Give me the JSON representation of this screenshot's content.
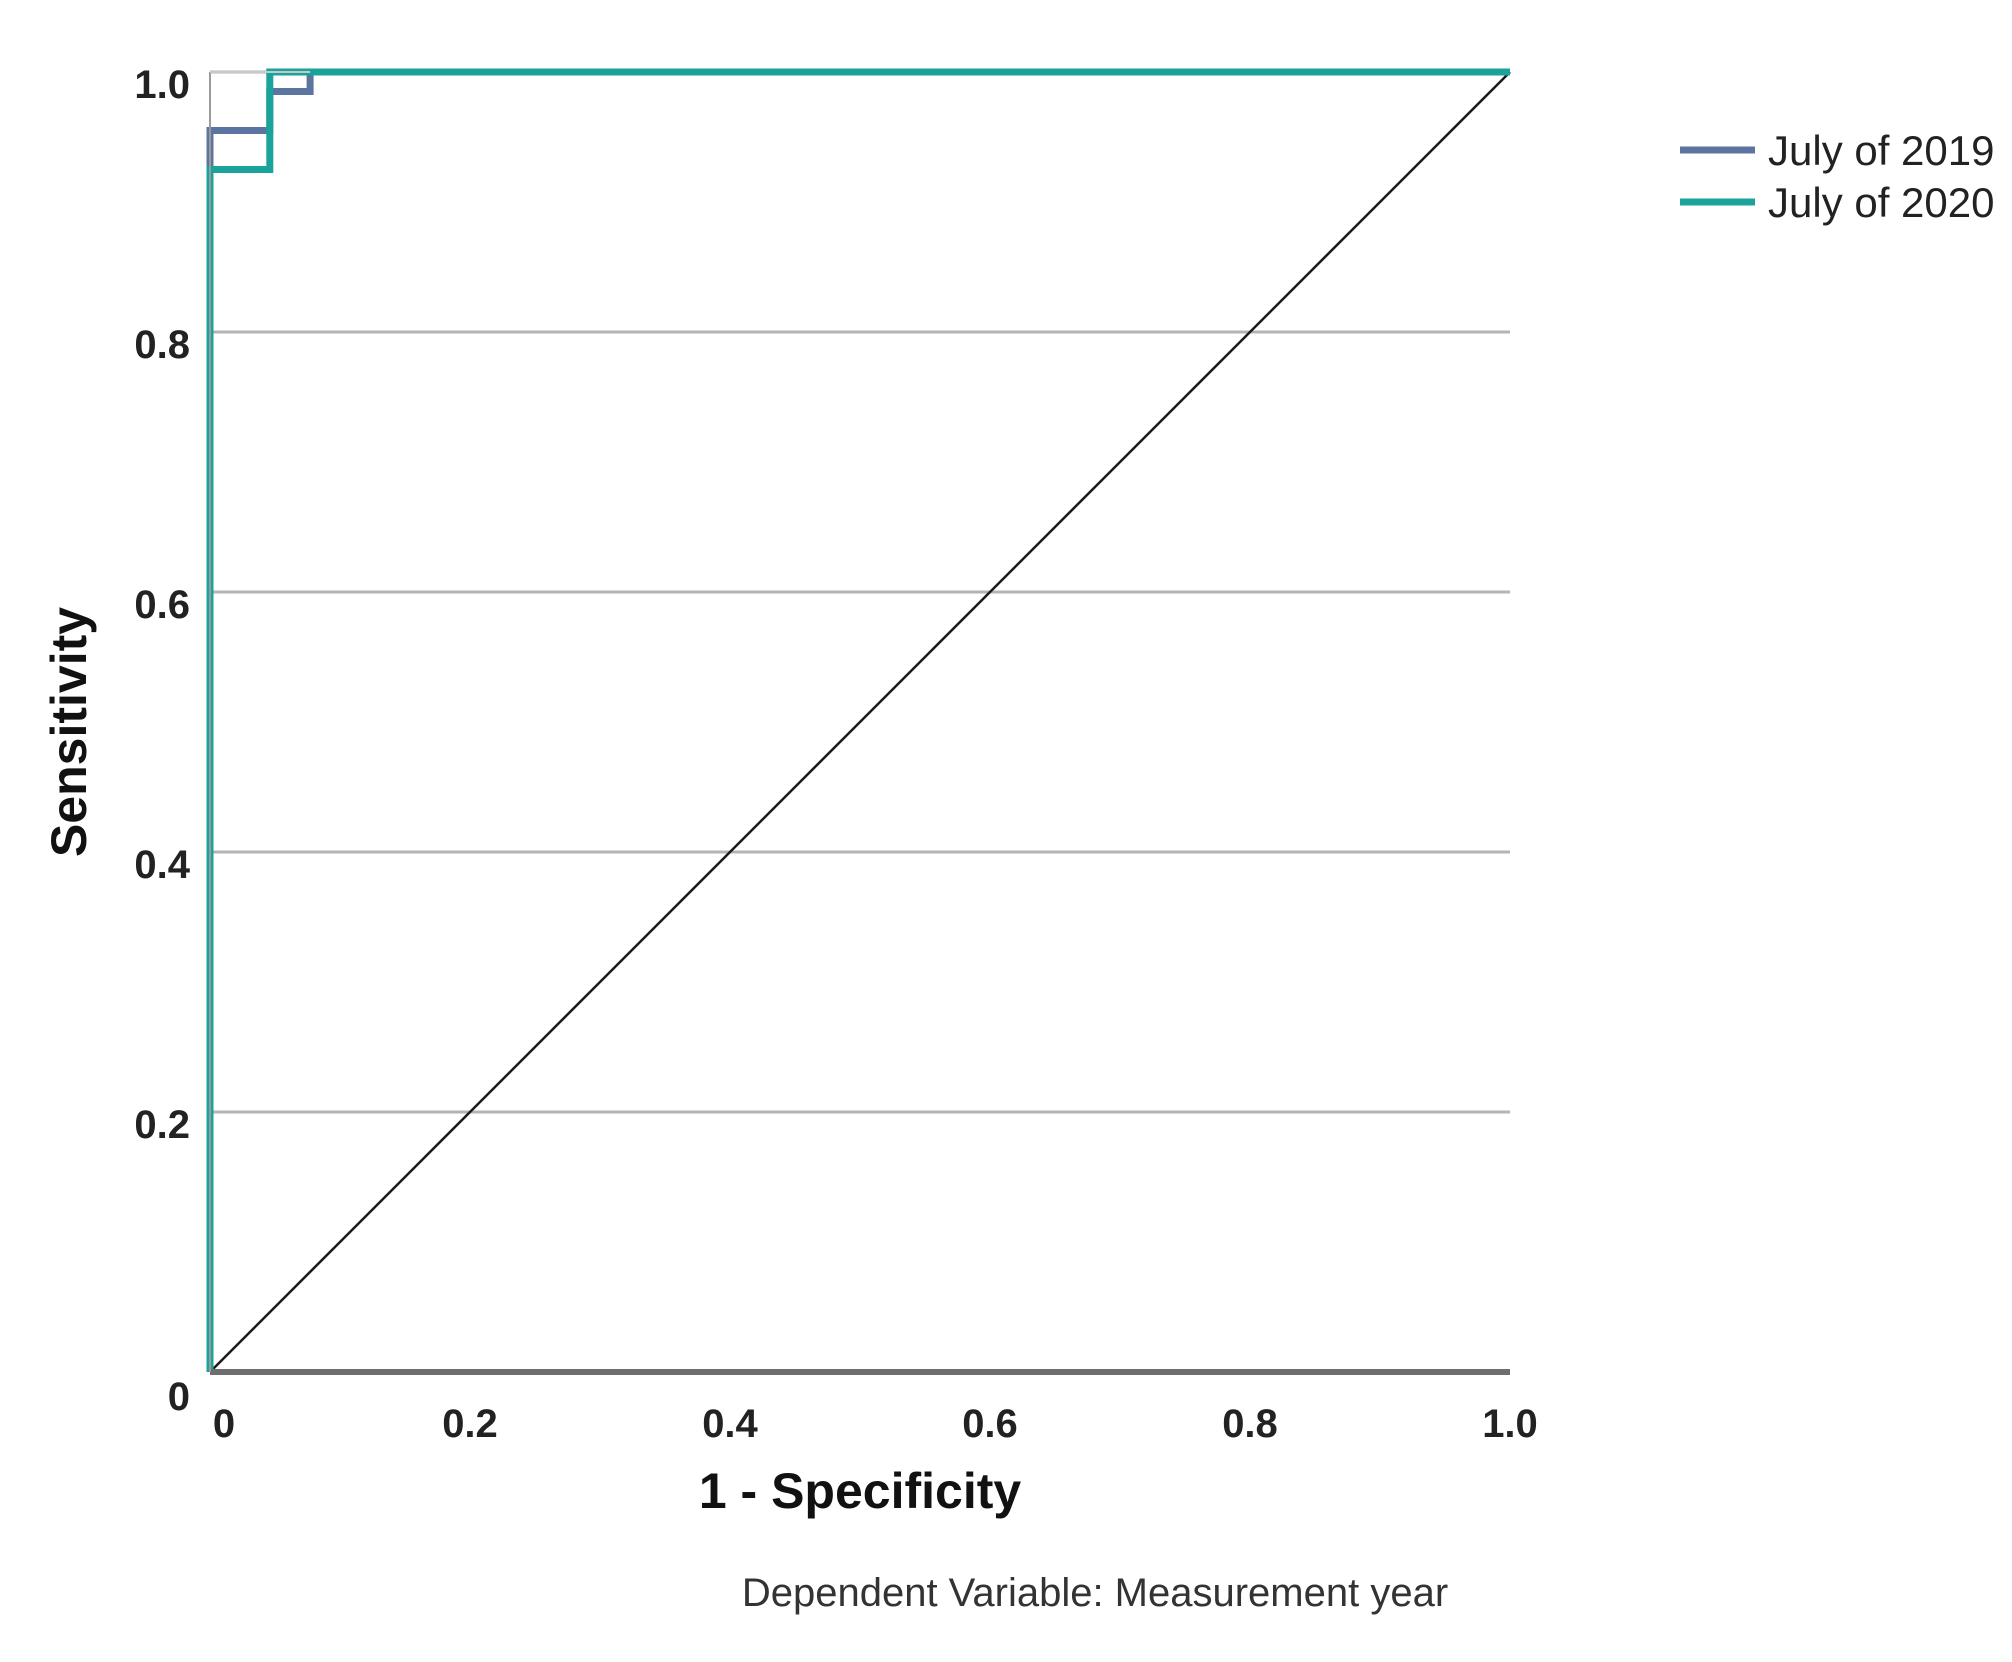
{
  "chart_data": {
    "type": "line",
    "xlabel": "1 - Specificity",
    "ylabel": "Sensitivity",
    "xlim": [
      0,
      1
    ],
    "ylim": [
      0,
      1
    ],
    "x_ticks": [
      {
        "value": 0,
        "label": "0"
      },
      {
        "value": 0.2,
        "label": "0.2"
      },
      {
        "value": 0.4,
        "label": "0.4"
      },
      {
        "value": 0.6,
        "label": "0.6"
      },
      {
        "value": 0.8,
        "label": "0.8"
      },
      {
        "value": 1,
        "label": "1.0"
      }
    ],
    "y_ticks": [
      {
        "value": 0,
        "label": "0"
      },
      {
        "value": 0.2,
        "label": "0.2"
      },
      {
        "value": 0.4,
        "label": "0.4"
      },
      {
        "value": 0.6,
        "label": "0.6"
      },
      {
        "value": 0.8,
        "label": "0.8"
      },
      {
        "value": 1,
        "label": "1.0"
      }
    ],
    "grid": "horizontal",
    "legend_position": "top-right",
    "reference_line": {
      "x": [
        0,
        1
      ],
      "y": [
        0,
        1
      ],
      "color": "#1a1a1a"
    },
    "series": [
      {
        "name": "July of 2019",
        "color": "#5b75a0",
        "x": [
          0,
          0,
          0.046,
          0.046,
          0.077,
          0.077,
          1
        ],
        "y": [
          0,
          0.955,
          0.955,
          0.985,
          0.985,
          1,
          1
        ]
      },
      {
        "name": "July of 2020",
        "color": "#1aa39a",
        "x": [
          0,
          0,
          0.046,
          0.046,
          1
        ],
        "y": [
          0,
          0.925,
          0.925,
          1,
          1
        ]
      }
    ],
    "footnote": "Dependent Variable: Measurement year"
  }
}
